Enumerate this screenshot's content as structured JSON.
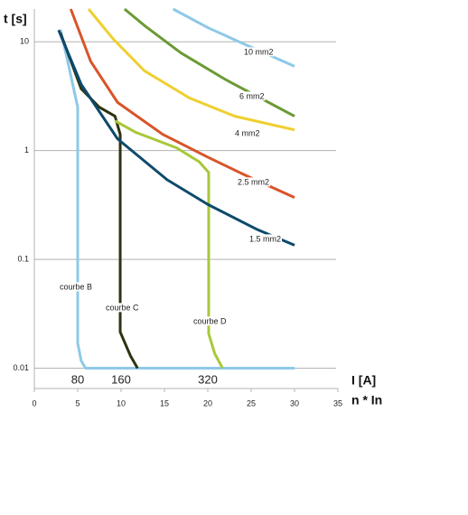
{
  "chart_data": {
    "type": "line",
    "y_label": "t [s]",
    "x_label": "I [A]",
    "x_label2": "n * In",
    "log_y": true,
    "grid": true,
    "xlim": [
      0,
      35
    ],
    "xticks": [
      0,
      5,
      10,
      15,
      20,
      25,
      30,
      35
    ],
    "x2ticks": [
      {
        "value": 5,
        "label": "80"
      },
      {
        "value": 10,
        "label": "160"
      },
      {
        "value": 20,
        "label": "320"
      }
    ],
    "ylim": [
      0.0065,
      20
    ],
    "yticks": [
      0.01,
      0.1,
      1,
      10
    ],
    "series": [
      {
        "name": "courbe B",
        "color": "#8ec9e8",
        "x": [
          3,
          3.85,
          5,
          5,
          5.4,
          5.9,
          30
        ],
        "values": [
          13,
          6.6,
          2.5,
          0.017,
          0.0117,
          0.01,
          0.01
        ]
      },
      {
        "name": "courbe C",
        "color": "#2a3510",
        "x": [
          3,
          5.4,
          7.5,
          9.3,
          9.9,
          9.9,
          11.1,
          11.9
        ],
        "values": [
          12.1,
          3.7,
          2.5,
          2.07,
          1.41,
          0.0215,
          0.0129,
          0.01
        ]
      },
      {
        "name": "courbe D",
        "color": "#a8c83a",
        "x": [
          9.3,
          11.7,
          16.4,
          19,
          20.1,
          20.1,
          20.8,
          21.7
        ],
        "values": [
          1.88,
          1.47,
          1.06,
          0.79,
          0.63,
          0.0208,
          0.0136,
          0.01
        ]
      },
      {
        "name": "1.5 mm2",
        "color": "#0d4a6c",
        "x": [
          2.8,
          5.4,
          9.6,
          15.3,
          20,
          25.7,
          30
        ],
        "values": [
          12.8,
          4.06,
          1.28,
          0.54,
          0.32,
          0.188,
          0.135
        ]
      },
      {
        "name": "2.5 mm2",
        "color": "#d9542a",
        "x": [
          4.2,
          6.5,
          9.6,
          14.8,
          20,
          24.2,
          30
        ],
        "values": [
          20,
          6.6,
          2.77,
          1.41,
          0.87,
          0.6,
          0.37
        ]
      },
      {
        "name": "4 mm2",
        "color": "#efcf30",
        "x": [
          6.25,
          9.1,
          12.7,
          17.9,
          23.1,
          30
        ],
        "values": [
          20,
          10.6,
          5.4,
          3.04,
          2.07,
          1.55
        ]
      },
      {
        "name": "6 mm2",
        "color": "#6b9a35",
        "x": [
          10.4,
          12.7,
          16.9,
          22.1,
          30
        ],
        "values": [
          20,
          14.1,
          7.9,
          4.47,
          2.07
        ]
      },
      {
        "name": "10 mm2",
        "color": "#8ec9e8",
        "x": [
          16,
          20,
          23.6,
          30
        ],
        "values": [
          20,
          13.5,
          10,
          5.95
        ]
      }
    ]
  }
}
